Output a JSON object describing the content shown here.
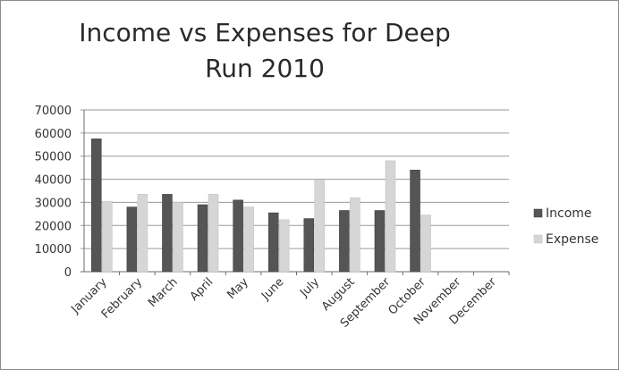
{
  "chart_data": {
    "type": "bar",
    "title": "Income vs Expenses for Deep Run 2010",
    "xlabel": "",
    "ylabel": "",
    "ylim": [
      0,
      70000
    ],
    "yticks": [
      0,
      10000,
      20000,
      30000,
      40000,
      50000,
      60000,
      70000
    ],
    "grid": true,
    "legend_position": "right",
    "categories": [
      "January",
      "February",
      "March",
      "April",
      "May",
      "June",
      "July",
      "August",
      "September",
      "October",
      "November",
      "December"
    ],
    "series": [
      {
        "name": "Income",
        "color": "#555555",
        "values": [
          57500,
          28000,
          33500,
          29000,
          31000,
          25500,
          23000,
          26500,
          26500,
          44000,
          null,
          null
        ]
      },
      {
        "name": "Expense",
        "color": "#d6d6d6",
        "values": [
          30500,
          33500,
          30000,
          33500,
          28000,
          22500,
          39500,
          32000,
          48000,
          24500,
          null,
          null
        ]
      }
    ]
  }
}
